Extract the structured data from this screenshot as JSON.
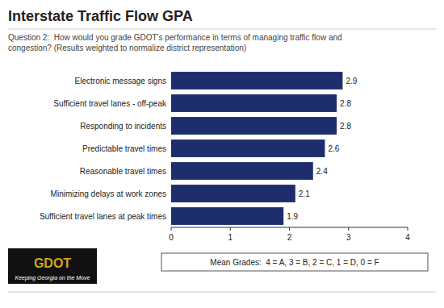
{
  "chart_data": {
    "type": "bar",
    "orientation": "horizontal",
    "title": "Interstate Traffic Flow GPA",
    "subtitle": "Question 2:  How would you grade GDOT's performance in terms of managing traffic flow and\ncongestion? (Results weighted to normalize district representation)",
    "categories": [
      "Sufficient travel lanes at peak times",
      "Minimizing delays at work zones",
      "Reasonable travel times",
      "Predictable travel times",
      "Responding to incidents",
      "Sufficient travel lanes - off-peak",
      "Electronic message signs"
    ],
    "values": [
      1.9,
      2.1,
      2.4,
      2.6,
      2.8,
      2.8,
      2.9
    ],
    "color": "#1e2d6b",
    "xlim": [
      0,
      4
    ],
    "xticks": [
      0,
      1,
      2,
      3,
      4
    ],
    "data_labels": true,
    "grid": false,
    "annotations": [
      "Mean Grades:  4 = A, 3 = B, 2 = C, 1 = D, 0 = F",
      "GDOT",
      "Keeping Georgia on the Move"
    ]
  }
}
